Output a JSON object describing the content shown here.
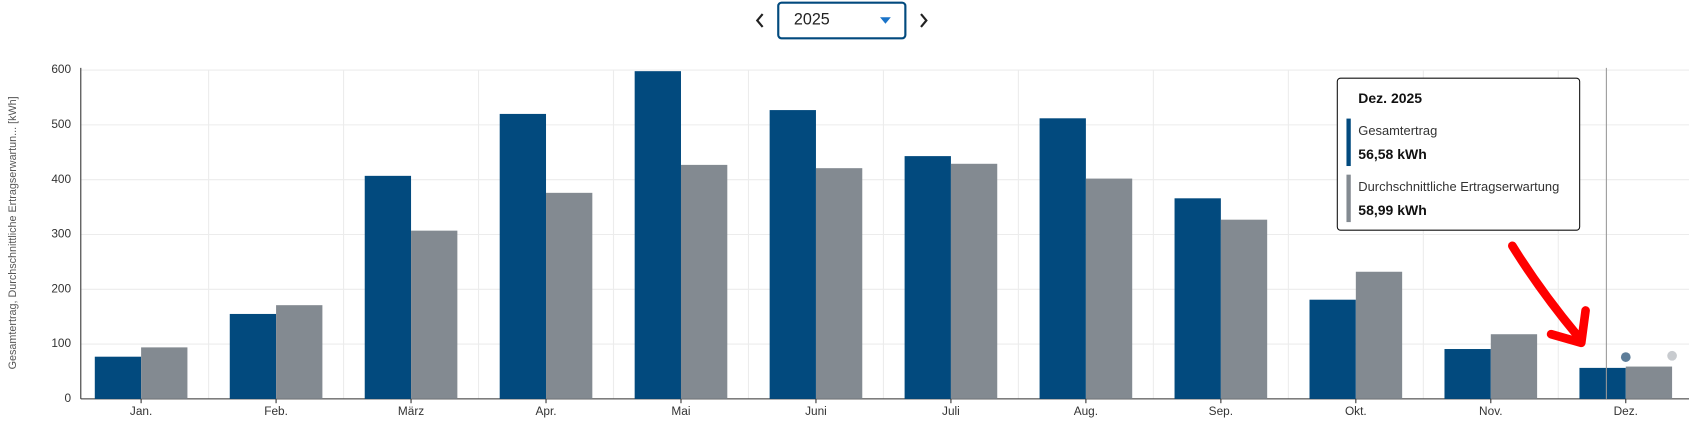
{
  "year_selector": "2025",
  "chart_data": {
    "type": "bar",
    "y_label": "Gesamtertrag, Durchschnittliche Ertragserwartun... [kWh]",
    "categories": [
      "Jan.",
      "Feb.",
      "März",
      "Apr.",
      "Mai",
      "Juni",
      "Juli",
      "Aug.",
      "Sep.",
      "Okt.",
      "Nov.",
      "Dez."
    ],
    "series": [
      {
        "name": "Gesamtertrag",
        "color": "#024a7e",
        "values": [
          77,
          155,
          407,
          520,
          598,
          527,
          443,
          512,
          366,
          181,
          91,
          56.58
        ],
        "value_labels": [
          null,
          null,
          null,
          null,
          null,
          null,
          null,
          null,
          null,
          null,
          null,
          "56,58 kWh"
        ]
      },
      {
        "name": "Durchschnittliche Ertragserwartung",
        "color": "#838a91",
        "values": [
          94,
          171,
          307,
          376,
          427,
          421,
          429,
          402,
          327,
          232,
          118,
          58.99
        ],
        "value_labels": [
          null,
          null,
          null,
          null,
          null,
          null,
          null,
          null,
          null,
          null,
          null,
          "58,99 kWh"
        ]
      }
    ],
    "ylim": [
      0,
      600
    ],
    "yticks": [
      0,
      100,
      200,
      300,
      400,
      500,
      600
    ],
    "grid": true,
    "tooltip": {
      "title": "Dez. 2025",
      "category_index": 11
    }
  }
}
